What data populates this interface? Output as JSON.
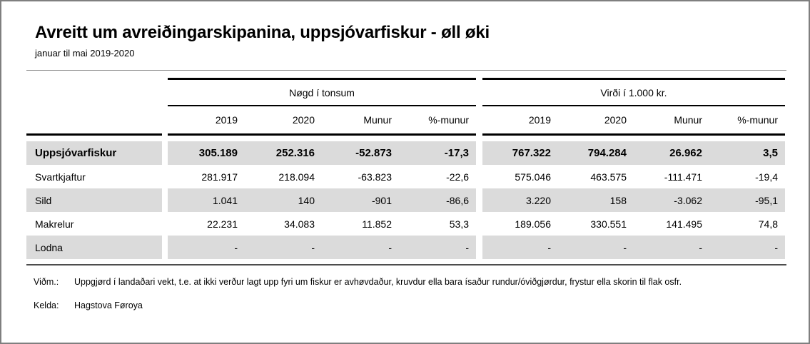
{
  "header": {
    "title": "Avreitt um avreiðingarskipanina, uppsjóvarfiskur - øll øki",
    "subtitle": "januar til mai 2019-2020"
  },
  "table": {
    "groups": [
      {
        "label": "Nøgd í tonsum"
      },
      {
        "label": "Virði í 1.000 kr."
      }
    ],
    "columns": [
      "2019",
      "2020",
      "Munur",
      "%-munur"
    ],
    "rows": [
      {
        "label": "Uppsjóvarfiskur",
        "tons": [
          "305.189",
          "252.316",
          "-52.873",
          "-17,3"
        ],
        "value": [
          "767.322",
          "794.284",
          "26.962",
          "3,5"
        ]
      },
      {
        "label": "Svartkjaftur",
        "tons": [
          "281.917",
          "218.094",
          "-63.823",
          "-22,6"
        ],
        "value": [
          "575.046",
          "463.575",
          "-111.471",
          "-19,4"
        ]
      },
      {
        "label": "Sild",
        "tons": [
          "1.041",
          "140",
          "-901",
          "-86,6"
        ],
        "value": [
          "3.220",
          "158",
          "-3.062",
          "-95,1"
        ]
      },
      {
        "label": "Makrelur",
        "tons": [
          "22.231",
          "34.083",
          "11.852",
          "53,3"
        ],
        "value": [
          "189.056",
          "330.551",
          "141.495",
          "74,8"
        ]
      },
      {
        "label": "Lodna",
        "tons": [
          "-",
          "-",
          "-",
          "-"
        ],
        "value": [
          "-",
          "-",
          "-",
          "-"
        ]
      }
    ]
  },
  "footer": {
    "note_label": "Viðm.:",
    "note": "Uppgjørd í landaðari vekt, t.e. at ikki verður lagt upp fyri um fiskur er avhøvdaður, kruvdur ella bara ísaður rundur/óviðgjørdur, frystur ella skorin til flak osfr.",
    "source_label": "Kelda:",
    "source": "Hagstova Føroya"
  },
  "colors": {
    "row_shade": "#dbdbdb",
    "rule_black": "#000000",
    "rule_gray": "#8c8c8c",
    "border_gray": "#7f7f7f"
  }
}
